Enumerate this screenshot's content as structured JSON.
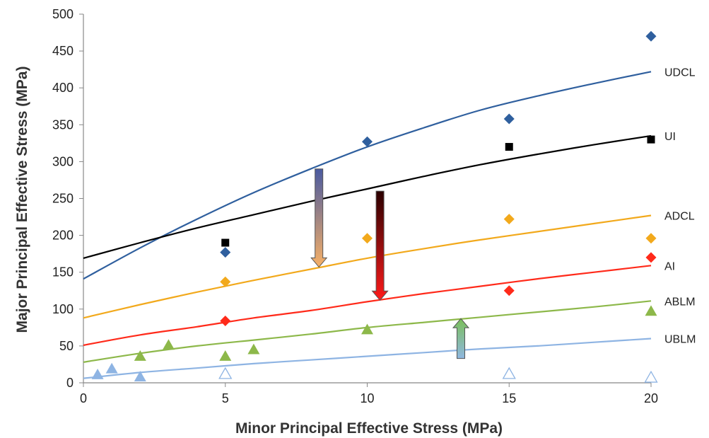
{
  "chart_data": {
    "type": "scatter",
    "xlabel": "Minor Principal Effective Stress (MPa)",
    "ylabel": "Major Principal Effective Stress (MPa)",
    "xlim": [
      0,
      20
    ],
    "ylim": [
      0,
      500
    ],
    "xticks": [
      0,
      5,
      10,
      15,
      20
    ],
    "yticks": [
      0,
      50,
      100,
      150,
      200,
      250,
      300,
      350,
      400,
      450,
      500
    ],
    "grid": false,
    "legend": "none (series labeled at right end of fitted curves)",
    "series": [
      {
        "name": "UDCL",
        "color": "#2f5f9e",
        "marker": "diamond",
        "points": [
          [
            5,
            177
          ],
          [
            10,
            327
          ],
          [
            15,
            358
          ],
          [
            20,
            470
          ]
        ],
        "fit_curve": [
          [
            0,
            141
          ],
          [
            2,
            183
          ],
          [
            4,
            222
          ],
          [
            6,
            258
          ],
          [
            8,
            290
          ],
          [
            10,
            320
          ],
          [
            12,
            346
          ],
          [
            14,
            370
          ],
          [
            16,
            389
          ],
          [
            18,
            406
          ],
          [
            20,
            422
          ]
        ]
      },
      {
        "name": "UI",
        "color": "#000000",
        "marker": "square",
        "points": [
          [
            5,
            190
          ],
          [
            15,
            320
          ],
          [
            20,
            330
          ]
        ],
        "fit_curve": [
          [
            0,
            169
          ],
          [
            2,
            190
          ],
          [
            4,
            210
          ],
          [
            6,
            228
          ],
          [
            8,
            246
          ],
          [
            10,
            263
          ],
          [
            12,
            280
          ],
          [
            14,
            296
          ],
          [
            16,
            310
          ],
          [
            18,
            323
          ],
          [
            20,
            335
          ]
        ]
      },
      {
        "name": "ADCL",
        "color": "#f2a91c",
        "marker": "diamond",
        "points": [
          [
            5,
            137
          ],
          [
            10,
            196
          ],
          [
            15,
            222
          ],
          [
            20,
            196
          ]
        ],
        "fit_curve": [
          [
            0,
            88
          ],
          [
            2,
            106
          ],
          [
            4,
            123
          ],
          [
            6,
            139
          ],
          [
            8,
            154
          ],
          [
            10,
            169
          ],
          [
            12,
            182
          ],
          [
            14,
            194
          ],
          [
            16,
            205
          ],
          [
            18,
            216
          ],
          [
            20,
            227
          ]
        ]
      },
      {
        "name": "AI",
        "color": "#ff2a1a",
        "marker": "diamond",
        "points": [
          [
            5,
            84
          ],
          [
            15,
            125
          ],
          [
            20,
            170
          ]
        ],
        "fit_curve": [
          [
            0,
            51
          ],
          [
            2,
            65
          ],
          [
            4,
            76
          ],
          [
            6,
            88
          ],
          [
            8,
            98
          ],
          [
            10,
            110
          ],
          [
            12,
            121
          ],
          [
            14,
            131
          ],
          [
            16,
            141
          ],
          [
            18,
            150
          ],
          [
            20,
            159
          ]
        ]
      },
      {
        "name": "ABLM",
        "color": "#8db84a",
        "marker": "triangle",
        "points": [
          [
            2,
            36
          ],
          [
            3,
            51
          ],
          [
            5,
            36
          ],
          [
            6,
            45
          ],
          [
            10,
            72
          ],
          [
            20,
            97
          ]
        ],
        "fit_curve": [
          [
            0,
            28
          ],
          [
            2,
            40
          ],
          [
            4,
            50
          ],
          [
            6,
            58
          ],
          [
            8,
            66
          ],
          [
            10,
            75
          ],
          [
            12,
            82
          ],
          [
            14,
            89
          ],
          [
            16,
            96
          ],
          [
            18,
            103
          ],
          [
            20,
            111
          ]
        ]
      },
      {
        "name": "UBLM",
        "color": "#8eb4e3",
        "marker": "triangle",
        "points": [
          [
            0.5,
            11
          ],
          [
            1,
            19
          ],
          [
            2,
            8
          ]
        ],
        "open_points": [
          [
            5,
            12
          ],
          [
            15,
            12
          ],
          [
            20,
            7
          ]
        ],
        "fit_curve": [
          [
            0,
            6
          ],
          [
            2,
            14
          ],
          [
            4,
            20
          ],
          [
            6,
            26
          ],
          [
            8,
            31
          ],
          [
            10,
            36
          ],
          [
            12,
            41
          ],
          [
            14,
            46
          ],
          [
            16,
            50
          ],
          [
            18,
            55
          ],
          [
            20,
            60
          ]
        ]
      }
    ],
    "annotations": [
      {
        "type": "arrow",
        "from": [
          8.3,
          290
        ],
        "to": [
          8.3,
          157
        ],
        "fill_top": "#4a5aa0",
        "fill_bottom": "#f7b066"
      },
      {
        "type": "arrow",
        "from": [
          10.45,
          260
        ],
        "to": [
          10.45,
          112
        ],
        "fill_top": "#2a0000",
        "fill_bottom": "#ff1a1a"
      },
      {
        "type": "arrow",
        "from": [
          13.3,
          33
        ],
        "to": [
          13.3,
          87
        ],
        "fill_top": "#7bbf5a",
        "fill_bottom": "#8fb7e0"
      }
    ]
  }
}
